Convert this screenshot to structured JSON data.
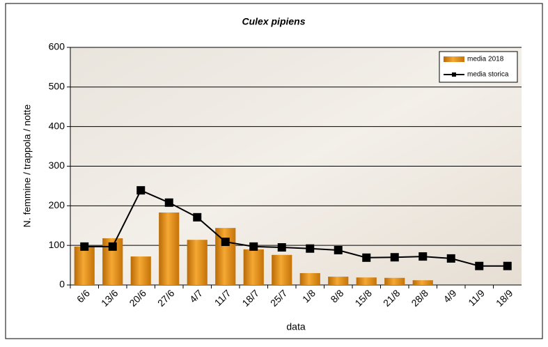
{
  "chart_data": {
    "type": "combo",
    "title": "Culex pipiens",
    "x_label": "data",
    "y_label": "N. femmine / trappola / notte",
    "categories": [
      "6/6",
      "13/6",
      "20/6",
      "27/6",
      "4/7",
      "11/7",
      "18/7",
      "25/7",
      "1/8",
      "8/8",
      "15/8",
      "21/8",
      "28/8",
      "4/9",
      "11/9",
      "18/9"
    ],
    "series": [
      {
        "name": "media 2018",
        "type": "bar",
        "color": "#e08a10",
        "values": [
          97,
          118,
          72,
          183,
          114,
          144,
          90,
          76,
          30,
          21,
          19,
          18,
          12,
          null,
          null,
          null
        ]
      },
      {
        "name": "media storica",
        "type": "line",
        "color": "#000000",
        "values": [
          97,
          97,
          239,
          208,
          171,
          109,
          97,
          95,
          92,
          88,
          69,
          70,
          72,
          67,
          48,
          48
        ]
      }
    ],
    "ylim": [
      0,
      600
    ],
    "yticks": [
      0,
      100,
      200,
      300,
      400,
      500,
      600
    ],
    "grid": true,
    "legend": "top-right"
  }
}
